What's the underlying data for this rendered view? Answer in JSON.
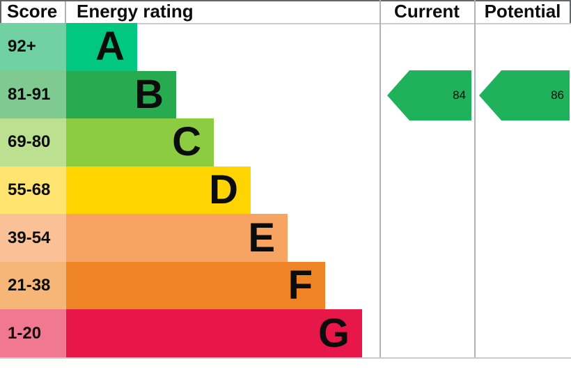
{
  "chart_data": {
    "type": "bar",
    "title": "Energy rating",
    "columns": [
      "Score",
      "Energy rating",
      "Current",
      "Potential"
    ],
    "categories": [
      "A",
      "B",
      "C",
      "D",
      "E",
      "F",
      "G"
    ],
    "score_ranges": [
      "92+",
      "81-91",
      "69-80",
      "55-68",
      "39-54",
      "21-38",
      "1-20"
    ],
    "band_colors": [
      "#00c781",
      "#28ab50",
      "#8bcc41",
      "#ffd400",
      "#f7a361",
      "#ee8426",
      "#e8174a"
    ],
    "series": [
      {
        "name": "Current",
        "value": 84,
        "band": "B"
      },
      {
        "name": "Potential",
        "value": 86,
        "band": "B"
      }
    ],
    "scale_min": 1,
    "scale_max": 100,
    "legend_position": "none",
    "grid": false
  },
  "header": {
    "score": "Score",
    "energy_rating": "Energy rating",
    "current": "Current",
    "potential": "Potential"
  },
  "bands": [
    {
      "score_range": "92+",
      "letter": "A",
      "band_color": "#00c781",
      "score_color": "#70d2a3"
    },
    {
      "score_range": "81-91",
      "letter": "B",
      "band_color": "#28ab50",
      "score_color": "#7eca90"
    },
    {
      "score_range": "69-80",
      "letter": "C",
      "band_color": "#8bcc41",
      "score_color": "#bbe08f"
    },
    {
      "score_range": "55-68",
      "letter": "D",
      "band_color": "#ffd400",
      "score_color": "#ffe470"
    },
    {
      "score_range": "39-54",
      "letter": "E",
      "band_color": "#f7a361",
      "score_color": "#fac196"
    },
    {
      "score_range": "21-38",
      "letter": "F",
      "band_color": "#ee8426",
      "score_color": "#f5b678"
    },
    {
      "score_range": "1-20",
      "letter": "G",
      "band_color": "#e8174a",
      "score_color": "#f07890"
    }
  ],
  "current": {
    "value": "84",
    "band": "B",
    "arrow_color": "#1fb25a"
  },
  "potential": {
    "value": "86",
    "band": "B",
    "arrow_color": "#1fb25a"
  }
}
